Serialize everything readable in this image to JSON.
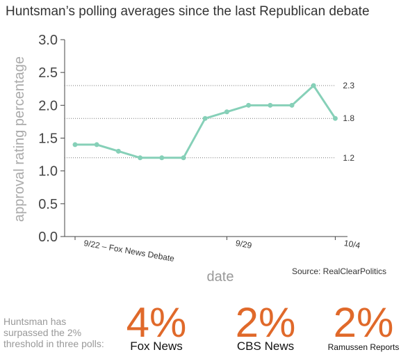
{
  "chart_data": {
    "type": "line",
    "title": "Huntsman’s polling averages since the last Republican debate",
    "x_label": "date",
    "y_label": "approval rating percentage",
    "source": "Source: RealClearPolitics",
    "categories": [
      "9/22 – Fox News Debate",
      null,
      null,
      null,
      null,
      null,
      null,
      "9/29",
      null,
      null,
      null,
      null,
      "10/4"
    ],
    "values": [
      1.4,
      1.4,
      1.3,
      1.2,
      1.2,
      1.2,
      1.8,
      1.9,
      2.0,
      2.0,
      2.0,
      2.3,
      1.8
    ],
    "color": "#86d0b8",
    "ylim": [
      0,
      3
    ],
    "yticks": [
      {
        "value": 0,
        "label": "0.0"
      },
      0.5,
      {
        "value": 1,
        "label": "1.0"
      },
      1.5,
      {
        "value": 2,
        "label": "2.0"
      },
      2.5,
      {
        "value": 3,
        "label": "3.0"
      }
    ],
    "reference_lines": [
      2.3,
      1.8,
      1.2
    ]
  },
  "callout": {
    "text": [
      "Huntsman has",
      "surpassed the 2%",
      "threshold in three polls:"
    ],
    "polls": [
      {
        "figure": "4%",
        "source": "Fox News"
      },
      {
        "figure": "2%",
        "source": "CBS News"
      },
      {
        "figure": "2%",
        "source": "Ramussen Reports"
      }
    ]
  }
}
